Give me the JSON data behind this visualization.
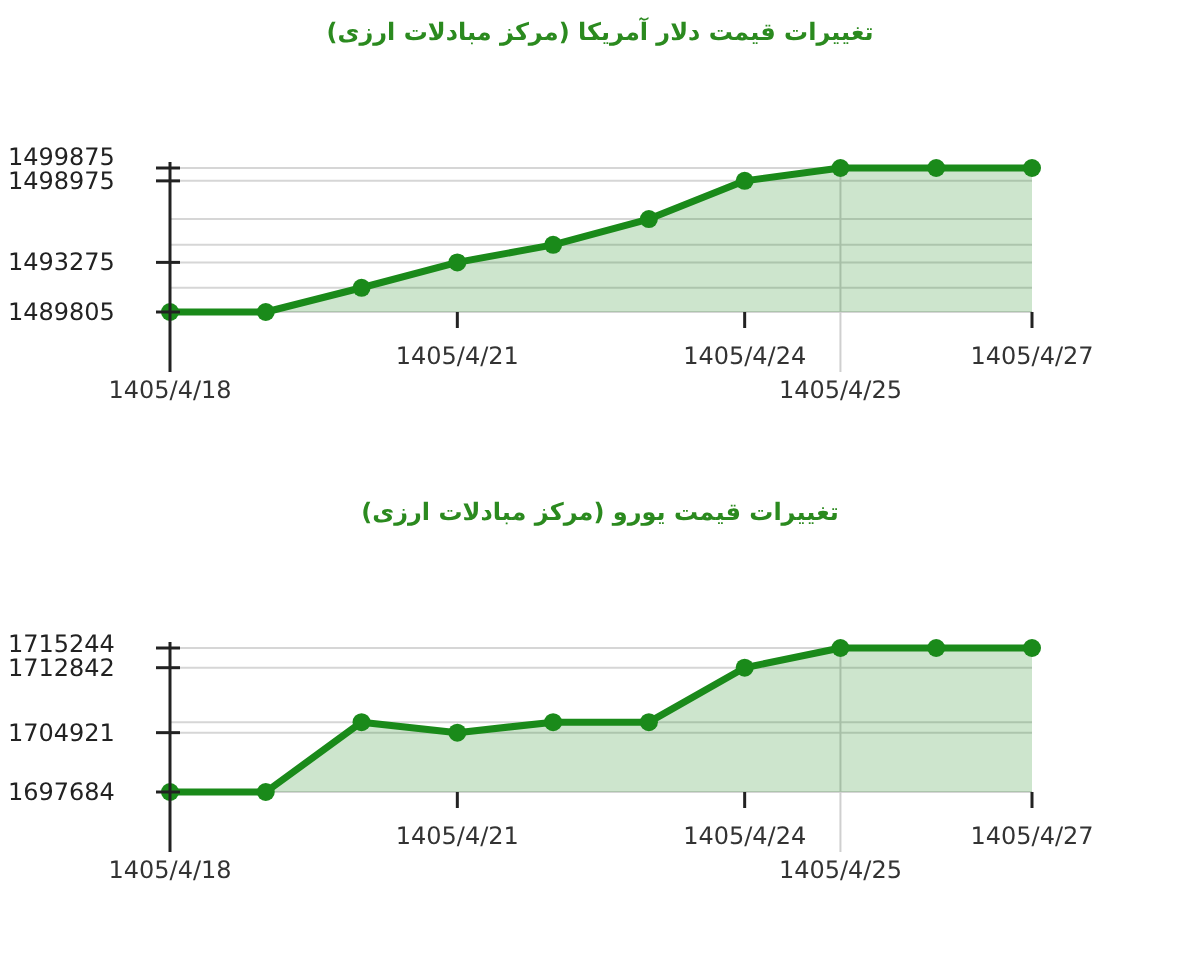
{
  "chart_data": [
    {
      "type": "area",
      "title": "تغییرات قیمت دلار آمریکا (مرکز مبادلات ارزی)",
      "categories": [
        "1405/4/18",
        null,
        null,
        "1405/4/21",
        null,
        null,
        "1405/4/24",
        "1405/4/25",
        null,
        "1405/4/27"
      ],
      "values": [
        1489805,
        1489805,
        1491500,
        1493275,
        1494500,
        1496300,
        1498975,
        1499875,
        1499875,
        1499875
      ],
      "color": "#1a8a1a",
      "ylim": [
        1489805,
        1499875
      ],
      "yticks": [
        1489805,
        {
          "value": 1491500,
          "label": null
        },
        1493275,
        {
          "value": 1494500,
          "label": null
        },
        {
          "value": 1496300,
          "label": null
        },
        1498975,
        1499875
      ],
      "grid": "y",
      "marker": "circle"
    },
    {
      "type": "area",
      "title": "تغییرات قیمت یورو (مرکز مبادلات ارزی)",
      "categories": [
        "1405/4/18",
        null,
        null,
        "1405/4/21",
        null,
        null,
        "1405/4/24",
        "1405/4/25",
        null,
        "1405/4/27"
      ],
      "values": [
        1697684,
        1697684,
        1706200,
        1704921,
        1706200,
        1706200,
        1712842,
        1715244,
        1715244,
        1715244
      ],
      "color": "#1a8a1a",
      "ylim": [
        1697684,
        1715244
      ],
      "yticks": [
        1697684,
        1704921,
        {
          "value": 1706200,
          "label": null
        },
        1712842,
        1715244
      ],
      "grid": "y",
      "marker": "circle"
    }
  ]
}
